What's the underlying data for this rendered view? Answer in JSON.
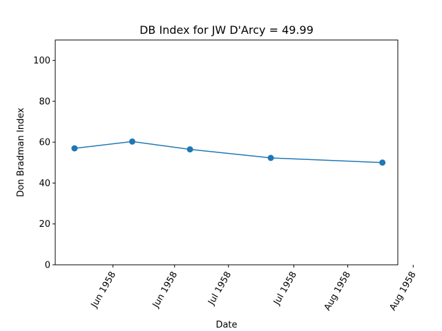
{
  "chart_data": {
    "type": "line",
    "title": "DB Index for JW D'Arcy = 49.99",
    "xlabel": "Date",
    "ylabel": "Don Bradman Index",
    "ylim": [
      0,
      110
    ],
    "yticks": [
      0,
      20,
      40,
      60,
      80,
      100
    ],
    "xlim": [
      "1958-05-31",
      "1958-08-28"
    ],
    "xticks": [
      {
        "date": "1958-06-15",
        "label": "Jun 1958"
      },
      {
        "date": "1958-07-01",
        "label": "Jun 1958"
      },
      {
        "date": "1958-07-15",
        "label": "Jul 1958"
      },
      {
        "date": "1958-08-01",
        "label": "Jul 1958"
      },
      {
        "date": "1958-08-15",
        "label": "Aug 1958"
      },
      {
        "date": "1958-09-01",
        "label": "Aug 1958"
      }
    ],
    "grid": false,
    "color": "#1f77b4",
    "series": [
      {
        "x": [
          "1958-06-05",
          "1958-06-20",
          "1958-07-05",
          "1958-07-26",
          "1958-08-24"
        ],
        "y": [
          57.0,
          60.3,
          56.5,
          52.3,
          49.99
        ]
      }
    ]
  }
}
